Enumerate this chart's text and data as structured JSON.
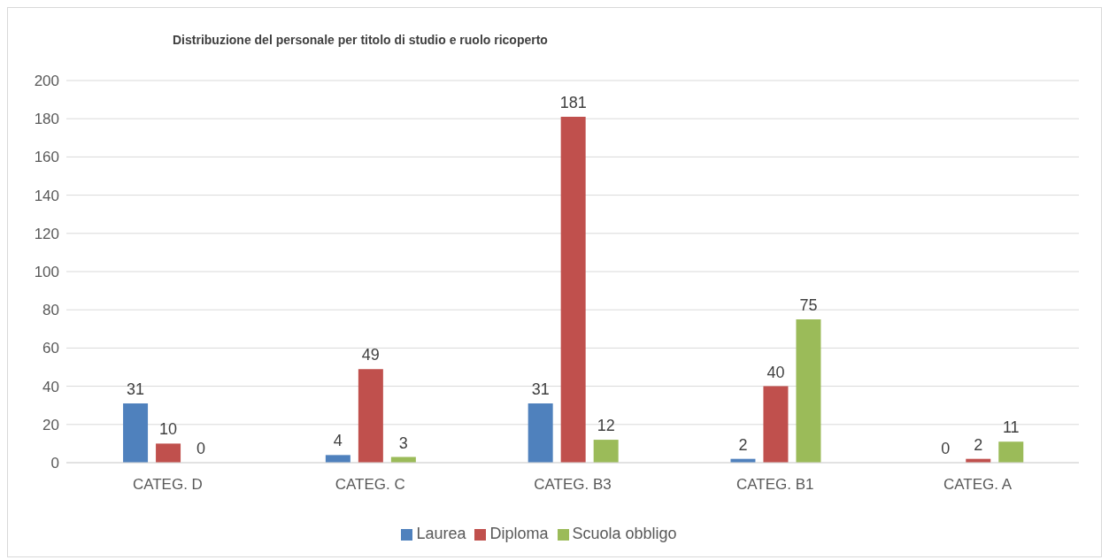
{
  "chart_data": {
    "type": "bar",
    "title": "Distribuzione del personale per titolo di studio e ruolo ricoperto",
    "categories": [
      "CATEG. D",
      "CATEG. C",
      "CATEG. B3",
      "CATEG. B1",
      "CATEG. A"
    ],
    "series": [
      {
        "name": "Laurea",
        "color": "#4f81bd",
        "values": [
          31,
          4,
          31,
          2,
          0
        ]
      },
      {
        "name": "Diploma",
        "color": "#c0504d",
        "values": [
          10,
          49,
          181,
          40,
          2
        ]
      },
      {
        "name": "Scuola obbligo",
        "color": "#9bbb59",
        "values": [
          0,
          3,
          12,
          75,
          11
        ]
      }
    ],
    "ylim": [
      0,
      200
    ],
    "yticks": [
      0,
      20,
      40,
      60,
      80,
      100,
      120,
      140,
      160,
      180,
      200
    ],
    "grid": "y",
    "legend": "bottom",
    "data_labels": true
  }
}
